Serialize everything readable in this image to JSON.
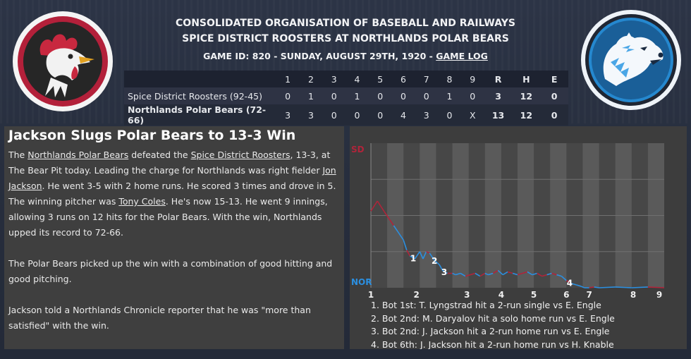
{
  "header": {
    "league": "CONSOLIDATED ORGANISATION OF BASEBALL AND RAILWAYS",
    "matchup": "SPICE DISTRICT ROOSTERS AT NORTHLANDS POLAR BEARS",
    "game_info": "GAME ID: 820 - SUNDAY, AUGUST 29TH, 1920 - ",
    "game_log_link": "GAME LOG"
  },
  "linescore": {
    "columns": [
      "1",
      "2",
      "3",
      "4",
      "5",
      "6",
      "7",
      "8",
      "9",
      "R",
      "H",
      "E"
    ],
    "rows": [
      {
        "team": "Spice District Roosters (92-45)",
        "cells": [
          "0",
          "1",
          "0",
          "1",
          "0",
          "0",
          "0",
          "1",
          "0",
          "3",
          "12",
          "0"
        ]
      },
      {
        "team": "Northlands Polar Bears (72-66)",
        "cells": [
          "3",
          "3",
          "0",
          "0",
          "0",
          "4",
          "3",
          "0",
          "X",
          "13",
          "12",
          "0"
        ]
      }
    ]
  },
  "story": {
    "headline": "Jackson Slugs Polar Bears to 13-3 Win",
    "p1": {
      "a": "The ",
      "link1": "Northlands Polar Bears",
      "b": " defeated the ",
      "link2": "Spice District Roosters",
      "c": ", 13-3, at The Bear Pit today. Leading the charge for Northlands was right fielder ",
      "link3": "Jon Jackson",
      "d": ". He went 3-5 with 2 home runs. He scored 3 times and drove in 5. The winning pitcher was ",
      "link4": "Tony Coles",
      "e": ". He's now 15-13. He went 9 innings, allowing 3 runs on 12 hits for the Polar Bears. With the win, Northlands upped its record to 72-66."
    },
    "p2": "The Polar Bears picked up the win with a combination of good hitting and good pitching.",
    "p3": "Jackson told a Northlands Chronicle reporter that he was \"more than satisfied\" with the win."
  },
  "chart_data": {
    "type": "line",
    "top_label": "SD",
    "bottom_label": "NOR",
    "x_ticks": [
      "1",
      "2",
      "3",
      "4",
      "5",
      "6",
      "7",
      "8",
      "9"
    ],
    "colors": {
      "away": "#b0243a",
      "home": "#2b8fe0"
    },
    "x": [
      0.0,
      0.2,
      0.4,
      0.55,
      0.7,
      0.85,
      1.0,
      1.1,
      1.2,
      1.35,
      1.5,
      1.6,
      1.7,
      1.8,
      1.95,
      2.1,
      2.2,
      2.35,
      2.5,
      2.6,
      2.75,
      2.9,
      3.05,
      3.2,
      3.35,
      3.5,
      3.6,
      3.75,
      3.9,
      4.05,
      4.2,
      4.35,
      4.5,
      4.65,
      4.8,
      4.95,
      5.1,
      5.25,
      5.4,
      5.55,
      5.7,
      5.85,
      6.0,
      6.15,
      6.3,
      6.45,
      6.55,
      6.7,
      6.85,
      7.0,
      7.5,
      8.0,
      8.5,
      9.0
    ],
    "y": [
      0.53,
      0.6,
      0.53,
      0.48,
      0.43,
      0.38,
      0.33,
      0.26,
      0.22,
      0.2,
      0.25,
      0.2,
      0.25,
      0.24,
      0.19,
      0.16,
      0.12,
      0.1,
      0.1,
      0.09,
      0.1,
      0.08,
      0.09,
      0.1,
      0.08,
      0.1,
      0.09,
      0.1,
      0.12,
      0.09,
      0.11,
      0.1,
      0.09,
      0.1,
      0.11,
      0.09,
      0.1,
      0.08,
      0.09,
      0.1,
      0.09,
      0.08,
      0.05,
      0.03,
      0.02,
      0.01,
      0.0,
      0.0,
      0.005,
      0.0,
      0.005,
      0.0,
      0.005,
      0.0
    ],
    "markers": [
      {
        "x": 1.3,
        "label": "1"
      },
      {
        "x": 1.95,
        "label": "2"
      },
      {
        "x": 2.25,
        "label": "3"
      },
      {
        "x": 6.1,
        "label": "4"
      }
    ],
    "events": [
      "1. Bot 1st: T. Lyngstrad hit a 2-run single vs E. Engle",
      "2. Bot 2nd: M. Daryalov hit a solo home run vs E. Engle",
      "3. Bot 2nd: J. Jackson hit a 2-run home run vs E. Engle",
      "4. Bot 6th: J. Jackson hit a 2-run home run vs H. Knable"
    ]
  }
}
